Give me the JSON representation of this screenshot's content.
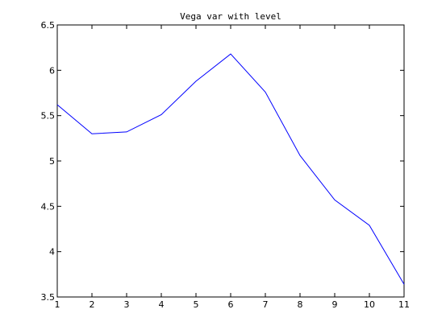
{
  "chart_data": {
    "type": "line",
    "title": "Vega var with level",
    "xlabel": "",
    "ylabel": "",
    "xlim": [
      1,
      11
    ],
    "ylim": [
      3.5,
      6.5
    ],
    "xticks": [
      1,
      2,
      3,
      4,
      5,
      6,
      7,
      8,
      9,
      10,
      11
    ],
    "xtick_labels": [
      "1",
      "2",
      "3",
      "4",
      "5",
      "6",
      "7",
      "8",
      "9",
      "10",
      "11"
    ],
    "yticks": [
      3.5,
      4,
      4.5,
      5,
      5.5,
      6,
      6.5
    ],
    "ytick_labels": [
      "3.5",
      "4",
      "4.5",
      "5",
      "5.5",
      "6",
      "6.5"
    ],
    "grid": false,
    "series": [
      {
        "color": "#0000ff",
        "x": [
          1,
          2,
          3,
          4,
          5,
          6,
          7,
          8,
          9,
          10,
          11
        ],
        "y": [
          5.62,
          5.3,
          5.32,
          5.51,
          5.88,
          6.18,
          5.76,
          5.06,
          4.57,
          4.29,
          3.64
        ]
      }
    ]
  }
}
